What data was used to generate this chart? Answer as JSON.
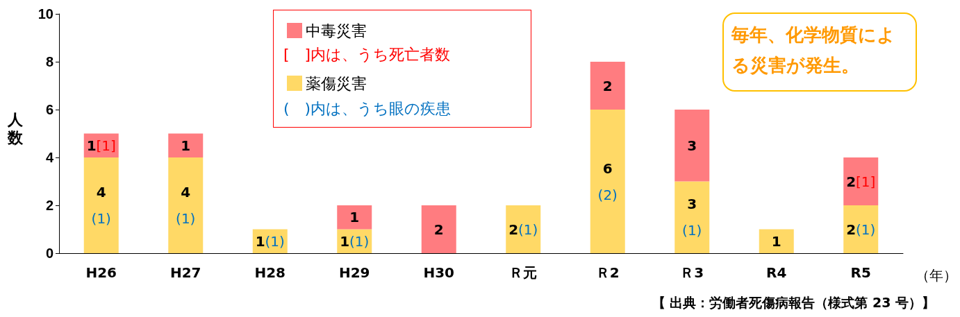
{
  "chart_data": {
    "type": "bar",
    "stacked": true,
    "ylabel": "人数",
    "xlabel": "（年）",
    "categories": [
      "H26",
      "H27",
      "H28",
      "H29",
      "H30",
      "Ｒ元",
      "Ｒ2",
      "Ｒ3",
      "R4",
      "R5"
    ],
    "series": [
      {
        "name": "薬傷災害",
        "color": "#ffd966",
        "values": [
          4,
          4,
          1,
          1,
          0,
          2,
          6,
          3,
          1,
          2
        ],
        "value_labels": [
          "4(1)",
          "4(1)",
          "1(1)",
          "1(1)",
          null,
          "2(1)",
          "6(2)",
          "3(1)",
          "1",
          "2(1)"
        ]
      },
      {
        "name": "中毒災害",
        "color": "#ff7c80",
        "values": [
          1,
          1,
          0,
          1,
          2,
          0,
          2,
          3,
          0,
          2
        ],
        "value_labels": [
          "1[1]",
          "1",
          null,
          "1",
          "2",
          null,
          "2",
          "3",
          null,
          "2[1]"
        ]
      }
    ],
    "ylim": [
      0,
      10
    ],
    "yticks": [
      0,
      2,
      4,
      6,
      8,
      10
    ],
    "grid": false,
    "legend": "top",
    "annotations": [
      "[　]内は、うち死亡者数",
      "(　)内は、うち眼の疾患",
      "毎年、化学物質による災害が発生。",
      "【 出典：労働者死傷病報告（様式第 23 号）】"
    ]
  }
}
